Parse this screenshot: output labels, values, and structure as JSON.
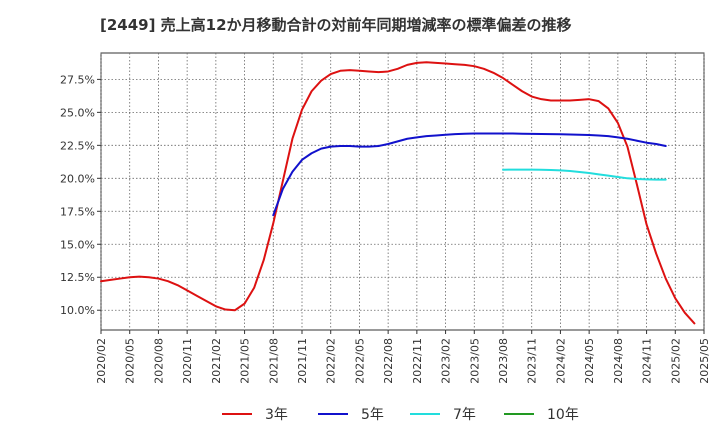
{
  "chart_data": {
    "type": "line",
    "title": "[2449]  売上高12か月移動合計の対前年同期増減率の標準偏差の推移",
    "xlabel": "",
    "ylabel": "",
    "ylim": [
      8.5,
      29.5
    ],
    "y_ticks": [
      10.0,
      12.5,
      15.0,
      17.5,
      20.0,
      22.5,
      25.0,
      27.5
    ],
    "y_tick_labels": [
      "10.0%",
      "12.5%",
      "15.0%",
      "17.5%",
      "20.0%",
      "22.5%",
      "25.0%",
      "27.5%"
    ],
    "x_ticks": [
      "2020/02",
      "2020/05",
      "2020/08",
      "2020/11",
      "2021/02",
      "2021/05",
      "2021/08",
      "2021/11",
      "2022/02",
      "2022/05",
      "2022/08",
      "2022/11",
      "2023/02",
      "2023/05",
      "2023/08",
      "2023/11",
      "2024/02",
      "2024/05",
      "2024/08",
      "2024/11",
      "2025/02",
      "2025/05"
    ],
    "grid": true,
    "legend": "bottom",
    "series": [
      {
        "name": "3年",
        "color": "#dd1111",
        "start_month_index": 0,
        "values": [
          12.2,
          12.3,
          12.4,
          12.5,
          12.55,
          12.5,
          12.4,
          12.2,
          11.9,
          11.5,
          11.1,
          10.7,
          10.3,
          10.05,
          10.0,
          10.5,
          11.7,
          13.8,
          16.6,
          19.8,
          23.0,
          25.2,
          26.6,
          27.4,
          27.9,
          28.15,
          28.2,
          28.15,
          28.1,
          28.05,
          28.1,
          28.3,
          28.6,
          28.75,
          28.8,
          28.75,
          28.7,
          28.65,
          28.6,
          28.5,
          28.3,
          28.0,
          27.6,
          27.1,
          26.6,
          26.2,
          26.0,
          25.9,
          25.9,
          25.9,
          25.95,
          26.0,
          25.85,
          25.3,
          24.2,
          22.4,
          19.5,
          16.5,
          14.3,
          12.4,
          10.9,
          9.8,
          9.0
        ]
      },
      {
        "name": "5年",
        "color": "#1111cc",
        "start_month_index": 18,
        "values": [
          17.2,
          19.2,
          20.5,
          21.4,
          21.9,
          22.25,
          22.4,
          22.45,
          22.45,
          22.4,
          22.4,
          22.45,
          22.6,
          22.8,
          23.0,
          23.1,
          23.2,
          23.25,
          23.3,
          23.35,
          23.38,
          23.4,
          23.4,
          23.4,
          23.4,
          23.4,
          23.38,
          23.37,
          23.36,
          23.35,
          23.34,
          23.32,
          23.3,
          23.28,
          23.25,
          23.2,
          23.1,
          23.0,
          22.85,
          22.7,
          22.6,
          22.45
        ]
      },
      {
        "name": "7年",
        "color": "#22dddd",
        "start_month_index": 42,
        "values": [
          20.65,
          20.66,
          20.66,
          20.66,
          20.65,
          20.63,
          20.6,
          20.55,
          20.48,
          20.4,
          20.3,
          20.2,
          20.1,
          20.0,
          19.95,
          19.92,
          19.9,
          19.9
        ]
      },
      {
        "name": "10年",
        "color": "#229922",
        "start_month_index": 0,
        "values": []
      }
    ]
  }
}
